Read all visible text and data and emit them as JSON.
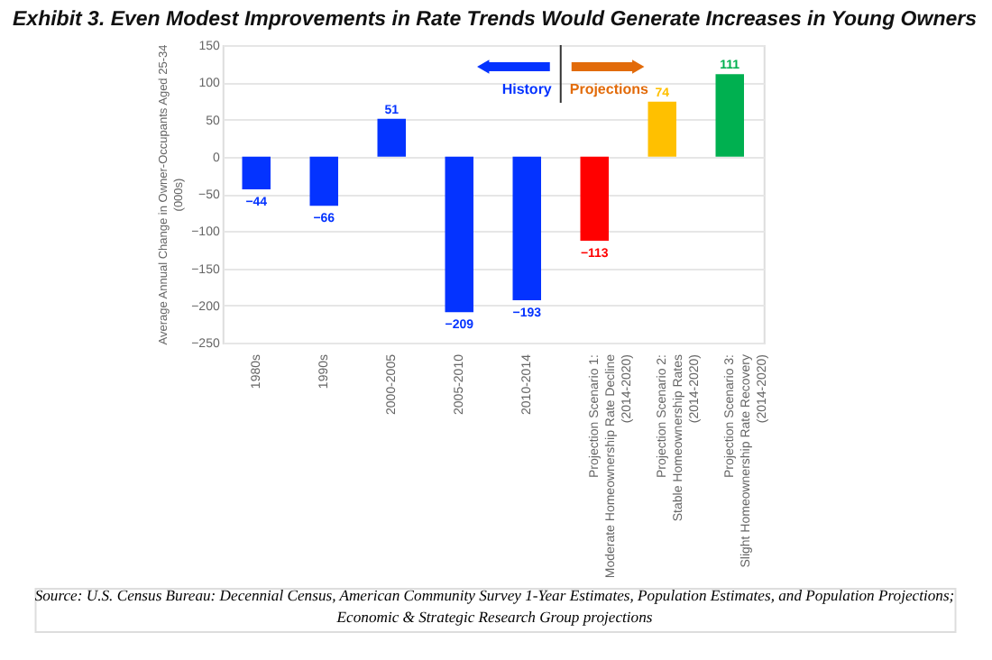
{
  "chart_data": {
    "type": "bar",
    "title": "Exhibit 3.  Even Modest Improvements in Rate Trends Would Generate Increases in Young Owners",
    "ylabel": "Average Annual Change in Owner-Occupants Aged 25-34\n(000s)",
    "categories": [
      "1980s",
      "1990s",
      "2000-2005",
      "2005-2010",
      "2010-2014",
      "Projection Scenario 1:\nModerate Homeownership Rate Decline\n(2014-2020)",
      "Projection Scenario 2:\nStable Homeownership Rates\n(2014-2020)",
      "Projection Scenario 3:\nSlight Homeownership Rate Recovery\n(2014-2020)"
    ],
    "values": [
      -44,
      -66,
      51,
      -209,
      -193,
      -113,
      74,
      111
    ],
    "colors": [
      "#0433ff",
      "#0433ff",
      "#0433ff",
      "#0433ff",
      "#0433ff",
      "#ff0000",
      "#ffc000",
      "#00b050"
    ],
    "data_labels": true,
    "ylim": [
      -250,
      150
    ],
    "yticks": [
      -250,
      -200,
      -150,
      -100,
      -50,
      0,
      50,
      100,
      150
    ],
    "grid": "y",
    "annotations": [
      "History",
      "Projections",
      "Source: U.S. Census Bureau: Decennial Census, American Community Survey 1-Year Estimates, Population Estimates, and Population Projections;\nEconomic & Strategic Research Group projections"
    ]
  }
}
